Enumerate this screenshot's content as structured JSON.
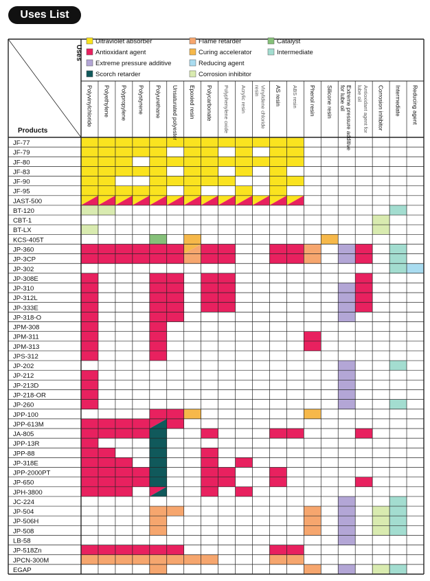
{
  "page": {
    "title": "Uses List"
  },
  "header": {
    "uses_label": "Uses",
    "products_label": "Products"
  },
  "colors": {
    "Y": "#fae31f",
    "A": "#e8215f",
    "F": "#f6a66e",
    "C": "#f6b84a",
    "P": "#b3a6d6",
    "R": "#a9dcf0",
    "K": "#86c17a",
    "I": "#a3ddd0",
    "S": "#10595b",
    "N": "#d9ebb0"
  },
  "legend": [
    {
      "code": "Y",
      "label": "Ultraviolet absorber"
    },
    {
      "code": "A",
      "label": "Antioxidant agent"
    },
    {
      "code": "P",
      "label": "Extreme pressure additive"
    },
    {
      "code": "S",
      "label": "Scorch retarder"
    },
    {
      "code": "F",
      "label": "Flame retarder"
    },
    {
      "code": "C",
      "label": "Curing accelerator"
    },
    {
      "code": "R",
      "label": "Reducing agent"
    },
    {
      "code": "N",
      "label": "Corrosion inhibitor"
    },
    {
      "code": "K",
      "label": "Catalyst"
    },
    {
      "code": "I",
      "label": "Intermediate"
    }
  ],
  "chart_data": {
    "type": "table",
    "columns": [
      {
        "label": "Polyvinylchloride",
        "light": false
      },
      {
        "label": "Polyethylene",
        "light": false
      },
      {
        "label": "Polypropylene",
        "light": false
      },
      {
        "label": "Polystyrene",
        "light": false
      },
      {
        "label": "Polyurethane",
        "light": false
      },
      {
        "label": "Unsaturated polyester",
        "light": false
      },
      {
        "label": "Epoxied resin",
        "light": false
      },
      {
        "label": "Polycarbonate",
        "light": false
      },
      {
        "label": "Polyphenylene oxide",
        "light": true
      },
      {
        "label": "Acrylic resin",
        "light": true
      },
      {
        "label": "Vinylidene chloride resin",
        "light": true
      },
      {
        "label": "AS resin",
        "light": false
      },
      {
        "label": "ABS resin",
        "light": true
      },
      {
        "label": "Phenol resin",
        "light": false
      },
      {
        "label": "Silicone resin",
        "light": false
      },
      {
        "label": "Extreme pressure additive for lube oil",
        "light": false
      },
      {
        "label": "Antioxidant agent for lube oil",
        "light": true
      },
      {
        "label": "Corrosion inhibitor",
        "light": false
      },
      {
        "label": "Intermediate",
        "light": false
      },
      {
        "label": "Reducing agent",
        "light": false
      }
    ],
    "rows": [
      {
        "product": "JF-77",
        "cells": [
          "Y",
          "Y",
          "Y",
          "Y",
          "Y",
          "Y",
          "Y",
          "Y",
          "Y",
          "Y",
          "Y",
          "Y",
          "Y",
          "",
          "",
          "",
          "",
          "",
          "",
          ""
        ]
      },
      {
        "product": "JF-79",
        "cells": [
          "Y",
          "Y",
          "Y",
          "Y",
          "Y",
          "",
          "Y",
          "Y",
          "",
          "Y",
          "",
          "Y",
          "Y",
          "",
          "",
          "",
          "",
          "",
          "",
          ""
        ]
      },
      {
        "product": "JF-80",
        "cells": [
          "Y",
          "Y",
          "Y",
          "",
          "Y",
          "Y",
          "Y",
          "Y",
          "Y",
          "Y",
          "Y",
          "Y",
          "Y",
          "",
          "",
          "",
          "",
          "",
          "",
          ""
        ]
      },
      {
        "product": "JF-83",
        "cells": [
          "Y",
          "Y",
          "Y",
          "Y",
          "Y",
          "",
          "Y",
          "Y",
          "",
          "Y",
          "",
          "Y",
          "",
          "",
          "",
          "",
          "",
          "",
          "",
          ""
        ]
      },
      {
        "product": "JF-90",
        "cells": [
          "Y",
          "Y",
          "",
          "",
          "Y",
          "Y",
          "Y",
          "Y",
          "Y",
          "",
          "",
          "Y",
          "Y",
          "",
          "",
          "",
          "",
          "",
          "",
          ""
        ]
      },
      {
        "product": "JF-95",
        "cells": [
          "Y",
          "Y",
          "Y",
          "Y",
          "Y",
          "",
          "Y",
          "",
          "",
          "Y",
          "",
          "Y",
          "",
          "",
          "",
          "",
          "",
          "",
          "",
          ""
        ]
      },
      {
        "product": "JAST-500",
        "cells": [
          "Y/A",
          "Y/A",
          "Y/A",
          "Y/A",
          "Y/A",
          "Y/A",
          "Y/A",
          "Y/A",
          "Y/A",
          "Y/A",
          "Y/A",
          "Y/A",
          "Y/A",
          "",
          "",
          "",
          "",
          "",
          "",
          ""
        ]
      },
      {
        "product": "BT-120",
        "cells": [
          "N",
          "N",
          "",
          "",
          "",
          "",
          "",
          "",
          "",
          "",
          "",
          "",
          "",
          "",
          "",
          "",
          "",
          "",
          "I",
          ""
        ]
      },
      {
        "product": "CBT-1",
        "cells": [
          "",
          "",
          "",
          "",
          "",
          "",
          "",
          "",
          "",
          "",
          "",
          "",
          "",
          "",
          "",
          "",
          "",
          "N",
          "",
          ""
        ]
      },
      {
        "product": "BT-LX",
        "cells": [
          "N",
          "",
          "",
          "",
          "",
          "",
          "",
          "",
          "",
          "",
          "",
          "",
          "",
          "",
          "",
          "",
          "",
          "N",
          "",
          ""
        ]
      },
      {
        "product": "KCS-405T",
        "cells": [
          "",
          "",
          "",
          "",
          "K",
          "",
          "C",
          "",
          "",
          "",
          "",
          "",
          "",
          "",
          "C",
          "",
          "",
          "",
          "",
          ""
        ]
      },
      {
        "product": "JP-360",
        "cells": [
          "A",
          "A",
          "A",
          "A",
          "A",
          "A",
          "C/F",
          "A",
          "A",
          "",
          "",
          "A",
          "A",
          "F",
          "",
          "P",
          "A",
          "",
          "I",
          ""
        ]
      },
      {
        "product": "JP-3CP",
        "cells": [
          "A",
          "A",
          "A",
          "A",
          "A",
          "A",
          "F",
          "A",
          "A",
          "",
          "",
          "A",
          "A",
          "F",
          "",
          "P",
          "A",
          "",
          "I",
          ""
        ]
      },
      {
        "product": "JP-302",
        "cells": [
          "",
          "",
          "",
          "",
          "",
          "",
          "",
          "",
          "",
          "",
          "",
          "",
          "",
          "",
          "",
          "",
          "",
          "",
          "I",
          "R"
        ]
      },
      {
        "product": "JP-308E",
        "cells": [
          "A",
          "",
          "",
          "",
          "A",
          "A",
          "",
          "A",
          "A",
          "",
          "",
          "",
          "",
          "",
          "",
          "",
          "A",
          "",
          "",
          ""
        ]
      },
      {
        "product": "JP-310",
        "cells": [
          "A",
          "",
          "",
          "",
          "A",
          "A",
          "",
          "A",
          "A",
          "",
          "",
          "",
          "",
          "",
          "",
          "P",
          "A",
          "",
          "",
          ""
        ]
      },
      {
        "product": "JP-312L",
        "cells": [
          "A",
          "",
          "",
          "",
          "A",
          "A",
          "",
          "A",
          "A",
          "",
          "",
          "",
          "",
          "",
          "",
          "P",
          "A",
          "",
          "",
          ""
        ]
      },
      {
        "product": "JP-333E",
        "cells": [
          "A",
          "",
          "",
          "",
          "A",
          "A",
          "",
          "A",
          "A",
          "",
          "",
          "",
          "",
          "",
          "",
          "P",
          "A",
          "",
          "",
          ""
        ]
      },
      {
        "product": "JP-318-O",
        "cells": [
          "A",
          "",
          "",
          "",
          "A",
          "A",
          "",
          "",
          "",
          "",
          "",
          "",
          "",
          "",
          "",
          "P",
          "",
          "",
          "",
          ""
        ]
      },
      {
        "product": "JPM-308",
        "cells": [
          "A",
          "",
          "",
          "",
          "A",
          "",
          "",
          "",
          "",
          "",
          "",
          "",
          "",
          "",
          "",
          "",
          "",
          "",
          "",
          ""
        ]
      },
      {
        "product": "JPM-311",
        "cells": [
          "A",
          "",
          "",
          "",
          "A",
          "",
          "",
          "",
          "",
          "",
          "",
          "",
          "",
          "A",
          "",
          "",
          "",
          "",
          "",
          ""
        ]
      },
      {
        "product": "JPM-313",
        "cells": [
          "A",
          "",
          "",
          "",
          "A",
          "",
          "",
          "",
          "",
          "",
          "",
          "",
          "",
          "A",
          "",
          "",
          "",
          "",
          "",
          ""
        ]
      },
      {
        "product": "JPS-312",
        "cells": [
          "A",
          "",
          "",
          "",
          "A",
          "",
          "",
          "",
          "",
          "",
          "",
          "",
          "",
          "",
          "",
          "",
          "",
          "",
          "",
          ""
        ]
      },
      {
        "product": "JP-202",
        "cells": [
          "",
          "",
          "",
          "",
          "",
          "",
          "",
          "",
          "",
          "",
          "",
          "",
          "",
          "",
          "",
          "P",
          "",
          "",
          "I",
          ""
        ]
      },
      {
        "product": "JP-212",
        "cells": [
          "A",
          "",
          "",
          "",
          "",
          "",
          "",
          "",
          "",
          "",
          "",
          "",
          "",
          "",
          "",
          "P",
          "",
          "",
          "",
          ""
        ]
      },
      {
        "product": "JP-213D",
        "cells": [
          "A",
          "",
          "",
          "",
          "",
          "",
          "",
          "",
          "",
          "",
          "",
          "",
          "",
          "",
          "",
          "P",
          "",
          "",
          "",
          ""
        ]
      },
      {
        "product": "JP-218-OR",
        "cells": [
          "A",
          "",
          "",
          "",
          "",
          "",
          "",
          "",
          "",
          "",
          "",
          "",
          "",
          "",
          "",
          "P",
          "",
          "",
          "",
          ""
        ]
      },
      {
        "product": "JP-260",
        "cells": [
          "A",
          "",
          "",
          "",
          "",
          "",
          "",
          "",
          "",
          "",
          "",
          "",
          "",
          "",
          "",
          "P",
          "",
          "",
          "I",
          ""
        ]
      },
      {
        "product": "JPP-100",
        "cells": [
          "",
          "",
          "",
          "",
          "A",
          "A",
          "C",
          "",
          "",
          "",
          "",
          "",
          "",
          "C",
          "",
          "",
          "",
          "",
          "",
          ""
        ]
      },
      {
        "product": "JPP-613M",
        "cells": [
          "A",
          "A",
          "A",
          "A",
          "A/S",
          "A",
          "",
          "",
          "",
          "",
          "",
          "",
          "",
          "",
          "",
          "",
          "",
          "",
          "",
          ""
        ]
      },
      {
        "product": "JA-805",
        "cells": [
          "A",
          "A",
          "A",
          "A",
          "S",
          "",
          "",
          "A",
          "",
          "",
          "",
          "A",
          "A",
          "",
          "",
          "",
          "A",
          "",
          "",
          ""
        ]
      },
      {
        "product": "JPP-13R",
        "cells": [
          "A",
          "",
          "",
          "",
          "S",
          "",
          "",
          "",
          "",
          "",
          "",
          "",
          "",
          "",
          "",
          "",
          "",
          "",
          "",
          ""
        ]
      },
      {
        "product": "JPP-88",
        "cells": [
          "A",
          "A",
          "",
          "",
          "S",
          "",
          "",
          "A",
          "",
          "",
          "",
          "",
          "",
          "",
          "",
          "",
          "",
          "",
          "",
          ""
        ]
      },
      {
        "product": "JP-318E",
        "cells": [
          "A",
          "A",
          "A",
          "",
          "S",
          "",
          "",
          "A",
          "",
          "A",
          "",
          "",
          "",
          "",
          "",
          "",
          "",
          "",
          "",
          ""
        ]
      },
      {
        "product": "JPP-2000PT",
        "cells": [
          "A",
          "A",
          "A",
          "A",
          "S",
          "",
          "",
          "A",
          "A",
          "",
          "",
          "A",
          "",
          "",
          "",
          "",
          "",
          "",
          "",
          ""
        ]
      },
      {
        "product": "JP-650",
        "cells": [
          "A",
          "A",
          "A",
          "A",
          "S",
          "",
          "",
          "A",
          "A",
          "",
          "",
          "A",
          "",
          "",
          "",
          "",
          "A",
          "",
          "",
          ""
        ]
      },
      {
        "product": "JPH-3800",
        "cells": [
          "A",
          "A",
          "A",
          "",
          "A/S",
          "",
          "",
          "A",
          "",
          "A",
          "",
          "",
          "",
          "",
          "",
          "",
          "",
          "",
          "",
          ""
        ]
      },
      {
        "product": "JC-224",
        "cells": [
          "",
          "",
          "",
          "",
          "",
          "",
          "",
          "",
          "",
          "",
          "",
          "",
          "",
          "",
          "",
          "P",
          "",
          "",
          "I",
          ""
        ]
      },
      {
        "product": "JP-504",
        "cells": [
          "",
          "",
          "",
          "",
          "F",
          "F",
          "",
          "",
          "",
          "",
          "",
          "",
          "",
          "F",
          "",
          "P",
          "",
          "N",
          "I",
          ""
        ]
      },
      {
        "product": "JP-506H",
        "cells": [
          "",
          "",
          "",
          "",
          "F",
          "",
          "",
          "",
          "",
          "",
          "",
          "",
          "",
          "F",
          "",
          "P",
          "",
          "N",
          "I",
          ""
        ]
      },
      {
        "product": "JP-508",
        "cells": [
          "",
          "",
          "",
          "",
          "F",
          "",
          "",
          "",
          "",
          "",
          "",
          "",
          "",
          "F",
          "",
          "P",
          "",
          "N",
          "I",
          ""
        ]
      },
      {
        "product": "LB-58",
        "cells": [
          "",
          "",
          "",
          "",
          "",
          "",
          "",
          "",
          "",
          "",
          "",
          "",
          "",
          "",
          "",
          "P",
          "",
          "",
          "",
          ""
        ]
      },
      {
        "product": "JP-518Zn",
        "cells": [
          "A",
          "A",
          "A",
          "A",
          "A",
          "A",
          "",
          "",
          "",
          "",
          "",
          "A",
          "A",
          "",
          "",
          "",
          "",
          "",
          "",
          ""
        ]
      },
      {
        "product": "JPCN-300M",
        "cells": [
          "F",
          "F",
          "F",
          "F",
          "F",
          "F",
          "F",
          "F",
          "",
          "",
          "",
          "F",
          "F",
          "",
          "",
          "",
          "",
          "",
          "",
          ""
        ]
      },
      {
        "product": "EGAP",
        "cells": [
          "",
          "",
          "",
          "",
          "F",
          "",
          "",
          "",
          "",
          "",
          "",
          "",
          "",
          "F",
          "",
          "P",
          "",
          "N",
          "I",
          ""
        ]
      }
    ]
  }
}
